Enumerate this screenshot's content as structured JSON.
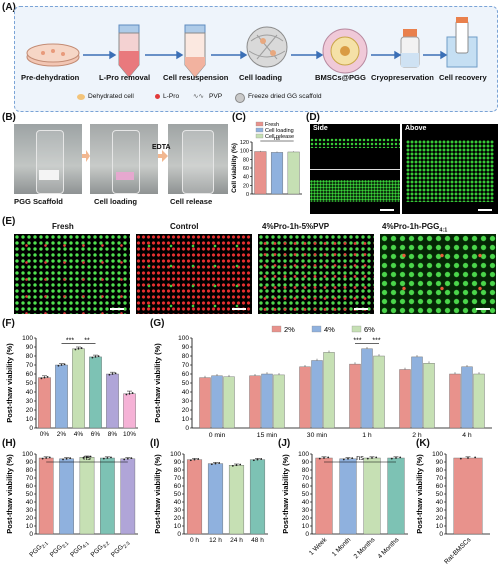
{
  "panelA": {
    "label": "(A)",
    "steps": [
      "Pre-dehydration",
      "L-Pro removal",
      "Cell resuspension",
      "Cell loading",
      "BMSCs@PGG",
      "Cryopreservation",
      "Cell recovery"
    ],
    "legend": [
      "Dehydrated cell",
      "L-Pro",
      "PVP",
      "Freeze dried GG scaffold"
    ]
  },
  "panelB": {
    "label": "(B)",
    "captions": [
      "PGG Scaffold",
      "Cell loading",
      "Cell release"
    ],
    "arrow_label": "EDTA"
  },
  "panelC": {
    "label": "(C)",
    "chart_data": {
      "type": "bar",
      "ylabel": "Cell viability (%)",
      "ylim": [
        0,
        120
      ],
      "yticks": [
        0,
        20,
        40,
        60,
        80,
        100,
        120
      ],
      "series": [
        {
          "name": "Fresh",
          "value": 98,
          "err": 1.5,
          "color": "#e8928c"
        },
        {
          "name": "Cell loading",
          "value": 96,
          "err": 2,
          "color": "#8fb1de"
        },
        {
          "name": "Cell release",
          "value": 97,
          "err": 1.5,
          "color": "#c6e0b4"
        }
      ],
      "annotation": "ns"
    }
  },
  "panelD": {
    "label": "(D)",
    "captions": [
      "Side",
      "Above"
    ]
  },
  "panelE": {
    "label": "(E)",
    "captions": [
      "Fresh",
      "Control",
      "4%Pro-1h-5%PVP",
      "4%Pro-1h-PGG"
    ],
    "caption_sub": "4:1"
  },
  "panelF": {
    "label": "(F)",
    "chart_data": {
      "type": "bar",
      "ylabel": "Post-thaw viability (%)",
      "ylim": [
        0,
        100
      ],
      "yticks": [
        0,
        10,
        20,
        30,
        40,
        50,
        60,
        70,
        80,
        90,
        100
      ],
      "categories": [
        "0%",
        "2%",
        "4%",
        "6%",
        "8%",
        "10%"
      ],
      "values": [
        56,
        70,
        88,
        79,
        60,
        38
      ],
      "errors": [
        2,
        1.5,
        2,
        2,
        2,
        3
      ],
      "colors": [
        "#e8928c",
        "#8fb1de",
        "#c6e0b4",
        "#7dc2b4",
        "#b0a5d8",
        "#f5b2d6"
      ],
      "annotations": [
        "***",
        "**"
      ]
    }
  },
  "panelG": {
    "label": "(G)",
    "chart_data": {
      "type": "bar",
      "ylabel": "Post-thaw viability (%)",
      "ylim": [
        0,
        100
      ],
      "yticks": [
        0,
        10,
        20,
        30,
        40,
        50,
        60,
        70,
        80,
        90,
        100
      ],
      "categories": [
        "0 min",
        "15 min",
        "30 min",
        "1 h",
        "2 h",
        "4 h"
      ],
      "series": [
        {
          "name": "2%",
          "values": [
            56,
            58,
            68,
            71,
            65,
            60
          ],
          "color": "#e8928c"
        },
        {
          "name": "4%",
          "values": [
            58,
            60,
            75,
            88,
            79,
            68
          ],
          "color": "#8fb1de"
        },
        {
          "name": "6%",
          "values": [
            57,
            59,
            84,
            80,
            72,
            60
          ],
          "color": "#c6e0b4"
        }
      ],
      "annotations": [
        "***",
        "***"
      ]
    }
  },
  "panelH": {
    "label": "(H)",
    "chart_data": {
      "type": "bar",
      "ylabel": "Post-thaw viability (%)",
      "ylim": [
        0,
        100
      ],
      "yticks": [
        0,
        10,
        20,
        30,
        40,
        50,
        60,
        70,
        80,
        90,
        100
      ],
      "categories": [
        {
          "base": "PGG",
          "sub": "2:1"
        },
        {
          "base": "PGG",
          "sub": "3:1"
        },
        {
          "base": "PGG",
          "sub": "4:1"
        },
        {
          "base": "PGG",
          "sub": "3:2"
        },
        {
          "base": "PGG",
          "sub": "2:3"
        }
      ],
      "values": [
        95,
        94,
        96,
        95,
        94
      ],
      "colors": [
        "#e8928c",
        "#8fb1de",
        "#c6e0b4",
        "#7dc2b4",
        "#b0a5d8"
      ],
      "annotation": "ns"
    }
  },
  "panelI": {
    "label": "(I)",
    "chart_data": {
      "type": "bar",
      "ylabel": "Post-thaw viability (%)",
      "ylim": [
        0,
        100
      ],
      "yticks": [
        0,
        10,
        20,
        30,
        40,
        50,
        60,
        70,
        80,
        90,
        100
      ],
      "categories": [
        "0 h",
        "12 h",
        "24 h",
        "48 h"
      ],
      "values": [
        93,
        88,
        86,
        93
      ],
      "colors": [
        "#e8928c",
        "#8fb1de",
        "#c6e0b4",
        "#7dc2b4"
      ]
    }
  },
  "panelJ": {
    "label": "(J)",
    "chart_data": {
      "type": "bar",
      "ylabel": "Post-thaw viability (%)",
      "ylim": [
        0,
        100
      ],
      "yticks": [
        0,
        10,
        20,
        30,
        40,
        50,
        60,
        70,
        80,
        90,
        100
      ],
      "categories": [
        "1 Week",
        "1 Month",
        "2 Months",
        "4 Months"
      ],
      "values": [
        95,
        94,
        95,
        95
      ],
      "colors": [
        "#e8928c",
        "#8fb1de",
        "#c6e0b4",
        "#7dc2b4"
      ],
      "annotation": "ns"
    }
  },
  "panelK": {
    "label": "(K)",
    "chart_data": {
      "type": "bar",
      "ylabel": "Post-thaw viability (%)",
      "ylim": [
        0,
        100
      ],
      "yticks": [
        0,
        10,
        20,
        30,
        40,
        50,
        60,
        70,
        80,
        90,
        100
      ],
      "categories": [
        "Rat-BMSCs"
      ],
      "values": [
        95
      ],
      "colors": [
        "#e8928c"
      ]
    }
  }
}
